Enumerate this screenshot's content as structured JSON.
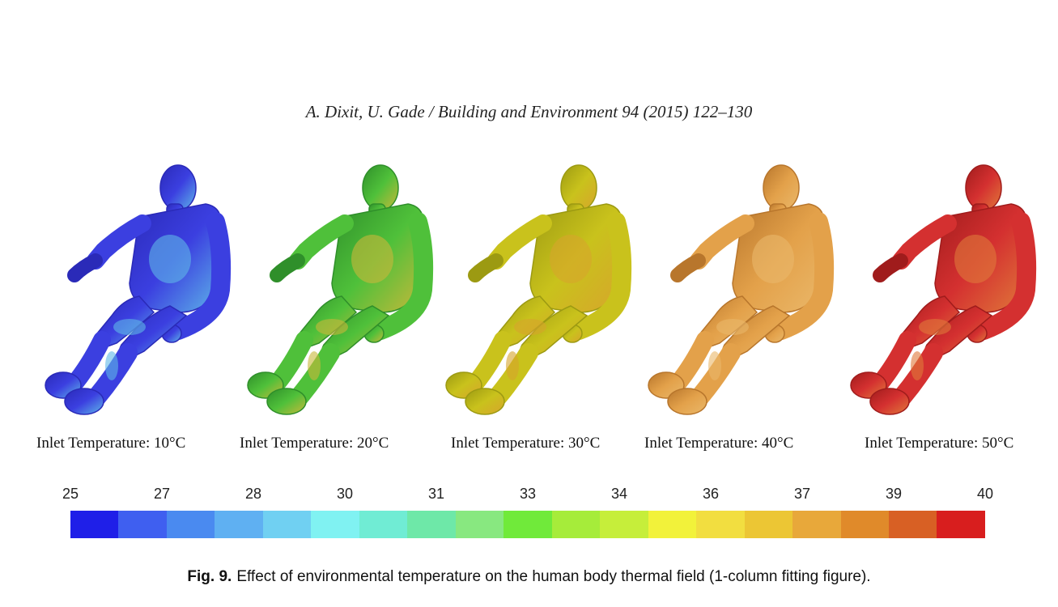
{
  "header": {
    "running_title": "A. Dixit, U. Gade / Building and Environment 94 (2015) 122–130"
  },
  "panels": [
    {
      "caption": "Inlet Temperature: 10°C",
      "base": "#3b3fe0",
      "mid": "#5fb8e8",
      "shade": "#2a2ab8"
    },
    {
      "caption": "Inlet Temperature: 20°C",
      "base": "#4fc03a",
      "mid": "#c9b83a",
      "shade": "#2f8f2a"
    },
    {
      "caption": "Inlet Temperature: 30°C",
      "base": "#c9c21c",
      "mid": "#d7a52c",
      "shade": "#9c9a12"
    },
    {
      "caption": "Inlet Temperature: 40°C",
      "base": "#e3a14a",
      "mid": "#eab86a",
      "shade": "#b8762c"
    },
    {
      "caption": "Inlet Temperature: 50°C",
      "base": "#d43030",
      "mid": "#e07a3a",
      "shade": "#a01c1c"
    }
  ],
  "colorbar": {
    "labels": [
      "25",
      "27",
      "28",
      "30",
      "31",
      "33",
      "34",
      "36",
      "37",
      "39",
      "40"
    ],
    "colors": [
      "#1f1fe8",
      "#3f5ff0",
      "#4a8af0",
      "#5fb0f2",
      "#70d0f2",
      "#80f2f2",
      "#70ecd4",
      "#6ee8a8",
      "#88e880",
      "#70ea3a",
      "#a6ec3a",
      "#c6ee3a",
      "#f2f23a",
      "#f2de40",
      "#ecc634",
      "#e8a83a",
      "#e08a2a",
      "#d86024",
      "#d81e1e"
    ]
  },
  "caption": {
    "fig_number": "Fig. 9.",
    "text": "Effect of environmental temperature on the human body thermal field (1-column fitting figure)."
  }
}
